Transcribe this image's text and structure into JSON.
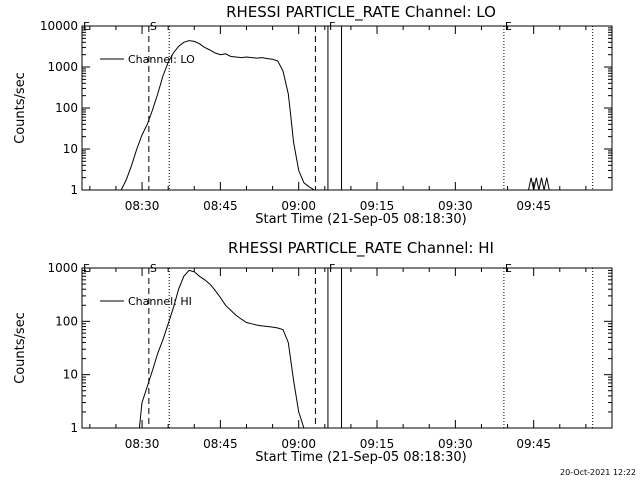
{
  "footer": {
    "timestamp": "20-Oct-2021 12:22"
  },
  "chart_data": [
    {
      "type": "line",
      "title": "RHESSI PARTICLE_RATE Channel: LO",
      "xlabel": "Start Time (21-Sep-05 08:18:30)",
      "ylabel": "Counts/sec",
      "yscale": "log",
      "ylim": [
        1,
        10000
      ],
      "xlim": [
        "08:18:30",
        "10:00:00"
      ],
      "xlim_min": [
        18.5,
        120
      ],
      "yticks": [
        1,
        10,
        100,
        1000,
        10000
      ],
      "ytick_labels": [
        "1",
        "10",
        "100",
        "1000",
        "10000"
      ],
      "xticks_min": [
        30,
        45,
        60,
        75,
        90,
        105
      ],
      "xtick_labels": [
        "08:30",
        "08:45",
        "09:00",
        "09:15",
        "09:30",
        "09:45"
      ],
      "legend": "top-left",
      "series": [
        {
          "name": "Channel: LO",
          "x_min": [
            26.0,
            27.0,
            28.0,
            29.0,
            30.0,
            31.0,
            32.0,
            33.0,
            34.0,
            35.0,
            36.0,
            37.0,
            38.0,
            39.0,
            40.0,
            41.0,
            41.5,
            42.0,
            43.0,
            44.0,
            45.0,
            46.0,
            47.0,
            48.0,
            49.0,
            50.0,
            51.0,
            52.0,
            53.0,
            54.0,
            55.0,
            56.0,
            57.0,
            58.0,
            58.5,
            59.0,
            60.0,
            61.0,
            62.0,
            63.0
          ],
          "y": [
            1,
            1.8,
            4,
            10,
            22,
            40,
            90,
            220,
            600,
            1300,
            2200,
            3200,
            4000,
            4400,
            4200,
            3700,
            3300,
            3000,
            2600,
            2200,
            2000,
            2100,
            1800,
            1750,
            1700,
            1750,
            1700,
            1650,
            1700,
            1600,
            1550,
            1400,
            800,
            220,
            60,
            15,
            3,
            1.5,
            1.2,
            1
          ]
        },
        {
          "name": "Channel: LO",
          "x_min": [
            104.0,
            104.5,
            105.0,
            105.5,
            106.0,
            106.5,
            107.0,
            107.5,
            108.0
          ],
          "y": [
            1,
            2,
            1,
            2,
            1,
            2,
            1,
            2,
            1
          ]
        }
      ],
      "markers": [
        {
          "label": "E",
          "x_min": 18.5,
          "style": "dotted"
        },
        {
          "label": "S",
          "x_min": 31.3,
          "style": "dashed"
        },
        {
          "label": "",
          "x_min": 35.2,
          "style": "dotted"
        },
        {
          "label": "",
          "x_min": 63.2,
          "style": "dashed"
        },
        {
          "label": "F",
          "x_min": 65.6,
          "style": "solid"
        },
        {
          "label": "",
          "x_min": 68.2,
          "style": "solid"
        },
        {
          "label": "E",
          "x_min": 99.3,
          "style": "dotted"
        },
        {
          "label": "",
          "x_min": 116.3,
          "style": "dotted"
        }
      ]
    },
    {
      "type": "line",
      "title": "RHESSI PARTICLE_RATE Channel: HI",
      "xlabel": "Start Time (21-Sep-05 08:18:30)",
      "ylabel": "Counts/sec",
      "yscale": "log",
      "ylim": [
        1,
        1000
      ],
      "xlim": [
        "08:18:30",
        "10:00:00"
      ],
      "xlim_min": [
        18.5,
        120
      ],
      "yticks": [
        1,
        10,
        100,
        1000
      ],
      "ytick_labels": [
        "1",
        "10",
        "100",
        "1000"
      ],
      "xticks_min": [
        30,
        45,
        60,
        75,
        90,
        105
      ],
      "xtick_labels": [
        "08:30",
        "08:45",
        "09:00",
        "09:15",
        "09:30",
        "09:45"
      ],
      "legend": "top-left",
      "series": [
        {
          "name": "Channel: HI",
          "x_min": [
            29.5,
            30.0,
            31.0,
            32.0,
            33.0,
            34.0,
            35.0,
            36.0,
            37.0,
            38.0,
            39.0,
            40.0,
            41.0,
            42.0,
            43.0,
            44.0,
            45.0,
            46.0,
            47.0,
            48.0,
            49.0,
            50.0,
            51.0,
            52.0,
            53.0,
            54.0,
            55.0,
            56.0,
            57.0,
            58.0,
            59.0,
            60.0,
            61.0
          ],
          "y": [
            1,
            3,
            6,
            12,
            25,
            45,
            90,
            180,
            400,
            700,
            900,
            850,
            700,
            600,
            500,
            380,
            280,
            200,
            160,
            130,
            110,
            95,
            90,
            85,
            82,
            80,
            78,
            75,
            70,
            40,
            8,
            2,
            1
          ]
        }
      ],
      "markers": [
        {
          "label": "E",
          "x_min": 18.5,
          "style": "dotted"
        },
        {
          "label": "S",
          "x_min": 31.3,
          "style": "dashed"
        },
        {
          "label": "",
          "x_min": 35.2,
          "style": "dotted"
        },
        {
          "label": "",
          "x_min": 63.2,
          "style": "dashed"
        },
        {
          "label": "F",
          "x_min": 65.6,
          "style": "solid"
        },
        {
          "label": "",
          "x_min": 68.2,
          "style": "solid"
        },
        {
          "label": "E",
          "x_min": 99.3,
          "style": "dotted"
        },
        {
          "label": "",
          "x_min": 116.3,
          "style": "dotted"
        }
      ]
    }
  ]
}
